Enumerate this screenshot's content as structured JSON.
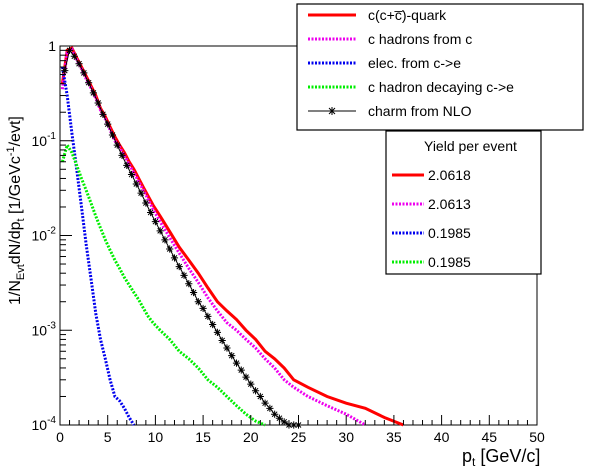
{
  "chart_data": {
    "type": "line",
    "title": "",
    "xlabel": "p",
    "xlabel_sub": "t",
    "xlabel_unit": " [GeV/c]",
    "ylabel": "1/N",
    "ylabel_sub_evt": "Evt",
    "ylabel_mid": "dN/dp",
    "ylabel_sub_t": "t",
    "ylabel_unit_a": " [1/GeVc",
    "ylabel_sup": "-1",
    "ylabel_unit_b": "/evt]",
    "x_range": [
      0,
      50
    ],
    "y_range": [
      0.0001,
      1
    ],
    "y_scale": "log",
    "x_ticks": [
      "0",
      "5",
      "10",
      "15",
      "20",
      "25",
      "30",
      "35",
      "40",
      "45",
      "50"
    ],
    "y_ticks": [
      {
        "base": "10",
        "exp": "-4",
        "value": 0.0001
      },
      {
        "base": "10",
        "exp": "-3",
        "value": 0.001
      },
      {
        "base": "10",
        "exp": "-2",
        "value": 0.01
      },
      {
        "base": "10",
        "exp": "-1",
        "value": 0.1
      },
      {
        "base": "1",
        "exp": "",
        "value": 1
      }
    ],
    "grid": false,
    "legend_position": "top-right",
    "series": [
      {
        "name": "c(c+c̅)-quark",
        "color": "#ff0000",
        "style": "solid-hist",
        "x": [
          0.25,
          0.75,
          1.25,
          1.75,
          2.25,
          2.75,
          3.25,
          3.75,
          4.25,
          4.75,
          5.25,
          5.75,
          6.25,
          6.75,
          7.25,
          7.75,
          8.25,
          8.75,
          9.25,
          9.75,
          10.5,
          11.5,
          12.5,
          13.5,
          14.5,
          15.5,
          16.5,
          17.5,
          18.5,
          19.5,
          20.5,
          21.5,
          22.5,
          23.5,
          24.5,
          26,
          28,
          30,
          32,
          34,
          36
        ],
        "y": [
          0.4,
          0.9,
          0.95,
          0.75,
          0.6,
          0.48,
          0.38,
          0.3,
          0.22,
          0.18,
          0.14,
          0.11,
          0.09,
          0.075,
          0.06,
          0.05,
          0.04,
          0.032,
          0.026,
          0.021,
          0.016,
          0.011,
          0.0075,
          0.0055,
          0.004,
          0.0028,
          0.002,
          0.0016,
          0.0013,
          0.001,
          0.0008,
          0.0006,
          0.0005,
          0.0004,
          0.0003,
          0.00025,
          0.0002,
          0.00017,
          0.00015,
          0.00012,
          0.0001
        ]
      },
      {
        "name": "c hadrons from c",
        "color": "#ee00ee",
        "style": "dotted-hist",
        "x": [
          0.25,
          0.75,
          1.25,
          1.75,
          2.25,
          2.75,
          3.25,
          3.75,
          4.25,
          4.75,
          5.25,
          5.75,
          6.25,
          6.75,
          7.25,
          7.75,
          8.25,
          8.75,
          9.25,
          9.75,
          10.5,
          11.5,
          12.5,
          13.5,
          14.5,
          15.5,
          16.5,
          17.5,
          18.5,
          19.5,
          20.5,
          21.5,
          22.5,
          23.5,
          24.5,
          26,
          28,
          30,
          32
        ],
        "y": [
          0.35,
          0.85,
          0.92,
          0.72,
          0.57,
          0.45,
          0.36,
          0.28,
          0.21,
          0.17,
          0.13,
          0.1,
          0.085,
          0.07,
          0.056,
          0.046,
          0.037,
          0.03,
          0.024,
          0.019,
          0.014,
          0.0095,
          0.0065,
          0.0045,
          0.0032,
          0.0022,
          0.0016,
          0.0012,
          0.001,
          0.0008,
          0.00065,
          0.0005,
          0.0004,
          0.0003,
          0.00025,
          0.0002,
          0.00016,
          0.00013,
          0.0001
        ]
      },
      {
        "name": "elec. from c->e",
        "color": "#0000ee",
        "style": "dotted-hist",
        "x": [
          0.25,
          0.75,
          1.25,
          1.75,
          2.25,
          2.75,
          3.25,
          3.75,
          4.25,
          4.75,
          5.25,
          5.75,
          6.25,
          6.75,
          7.25,
          7.75
        ],
        "y": [
          0.6,
          0.3,
          0.12,
          0.05,
          0.02,
          0.008,
          0.0035,
          0.0015,
          0.0008,
          0.0005,
          0.0003,
          0.0002,
          0.00018,
          0.00015,
          0.00012,
          0.0001
        ]
      },
      {
        "name": "c hadron decaying c->e",
        "color": "#00ee00",
        "style": "dotted-hist",
        "x": [
          0.25,
          0.75,
          1.25,
          1.75,
          2.25,
          2.75,
          3.25,
          3.75,
          4.25,
          4.75,
          5.25,
          5.75,
          6.25,
          6.75,
          7.25,
          7.75,
          8.25,
          8.75,
          9.25,
          9.75,
          10.5,
          11.5,
          12.5,
          13.5,
          14.5,
          15.5,
          16.5,
          17.5,
          18.5,
          19.5,
          20.5,
          21.5
        ],
        "y": [
          0.06,
          0.09,
          0.075,
          0.055,
          0.04,
          0.03,
          0.022,
          0.016,
          0.012,
          0.009,
          0.007,
          0.0055,
          0.0045,
          0.0036,
          0.003,
          0.0025,
          0.0021,
          0.0017,
          0.0014,
          0.0012,
          0.001,
          0.0008,
          0.0006,
          0.0005,
          0.0004,
          0.0003,
          0.00025,
          0.0002,
          0.00016,
          0.00013,
          0.00011,
          0.0001
        ]
      },
      {
        "name": "charm from NLO",
        "color": "#000000",
        "style": "star-line",
        "x": [
          0.5,
          1,
          1.5,
          2,
          2.5,
          3,
          3.5,
          4,
          4.5,
          5,
          5.5,
          6,
          6.5,
          7,
          7.5,
          8,
          8.5,
          9,
          9.5,
          10,
          10.5,
          11,
          11.5,
          12,
          12.5,
          13,
          13.5,
          14,
          14.5,
          15,
          15.5,
          16,
          16.5,
          17,
          17.5,
          18,
          18.5,
          19,
          19.5,
          20,
          20.5,
          21,
          21.5,
          22,
          22.5,
          23,
          23.5,
          24,
          24.5,
          25
        ],
        "y": [
          0.55,
          0.9,
          0.78,
          0.65,
          0.52,
          0.41,
          0.32,
          0.25,
          0.19,
          0.15,
          0.115,
          0.09,
          0.07,
          0.055,
          0.044,
          0.035,
          0.028,
          0.022,
          0.0175,
          0.014,
          0.0112,
          0.009,
          0.0072,
          0.0058,
          0.0047,
          0.0038,
          0.0031,
          0.0025,
          0.002,
          0.0017,
          0.0014,
          0.00115,
          0.00095,
          0.00078,
          0.00065,
          0.00054,
          0.00045,
          0.00038,
          0.00032,
          0.00027,
          0.00023,
          0.0002,
          0.00017,
          0.00015,
          0.00013,
          0.000118,
          0.000108,
          0.0001,
          0.0001,
          0.0001
        ]
      }
    ],
    "yield_box": {
      "title": "Yield per event",
      "entries": [
        {
          "value": "2.0618",
          "color": "#ff0000",
          "style": "solid"
        },
        {
          "value": "2.0613",
          "color": "#ee00ee",
          "style": "dotted"
        },
        {
          "value": "0.1985",
          "color": "#0000ee",
          "style": "dotted"
        },
        {
          "value": "0.1985",
          "color": "#00ee00",
          "style": "dotted"
        }
      ]
    }
  }
}
